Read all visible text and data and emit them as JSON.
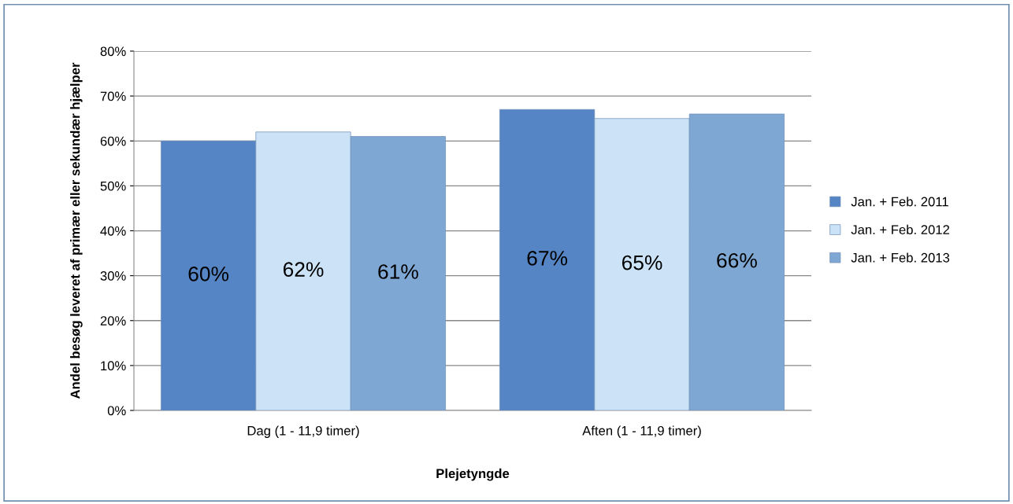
{
  "chart_data": {
    "type": "bar",
    "xlabel": "Plejetyngde",
    "ylabel": "Andel besøg leveret af primær eller sekundær hjælper",
    "categories": [
      "Dag (1 - 11,9 timer)",
      "Aften (1 - 11,9 timer)"
    ],
    "series": [
      {
        "name": "Jan. + Feb. 2011",
        "color": "#5585c5",
        "values": [
          60,
          67
        ],
        "value_labels": [
          "60%",
          "67%"
        ]
      },
      {
        "name": "Jan. + Feb. 2012",
        "color": "#cce3f7",
        "values": [
          62,
          65
        ],
        "value_labels": [
          "62%",
          "65%"
        ]
      },
      {
        "name": "Jan. + Feb. 2013",
        "color": "#7ea7d3",
        "values": [
          61,
          66
        ],
        "value_labels": [
          "61%",
          "66%"
        ]
      }
    ],
    "ylim": [
      0,
      80
    ],
    "yticks": [
      {
        "value": 0,
        "label": "0%"
      },
      {
        "value": 10,
        "label": "10%"
      },
      {
        "value": 20,
        "label": "20%"
      },
      {
        "value": 30,
        "label": "30%"
      },
      {
        "value": 40,
        "label": "40%"
      },
      {
        "value": 50,
        "label": "50%"
      },
      {
        "value": 60,
        "label": "60%"
      },
      {
        "value": 70,
        "label": "70%"
      },
      {
        "value": 80,
        "label": "80%"
      }
    ],
    "grid": "y",
    "legend": "right"
  }
}
